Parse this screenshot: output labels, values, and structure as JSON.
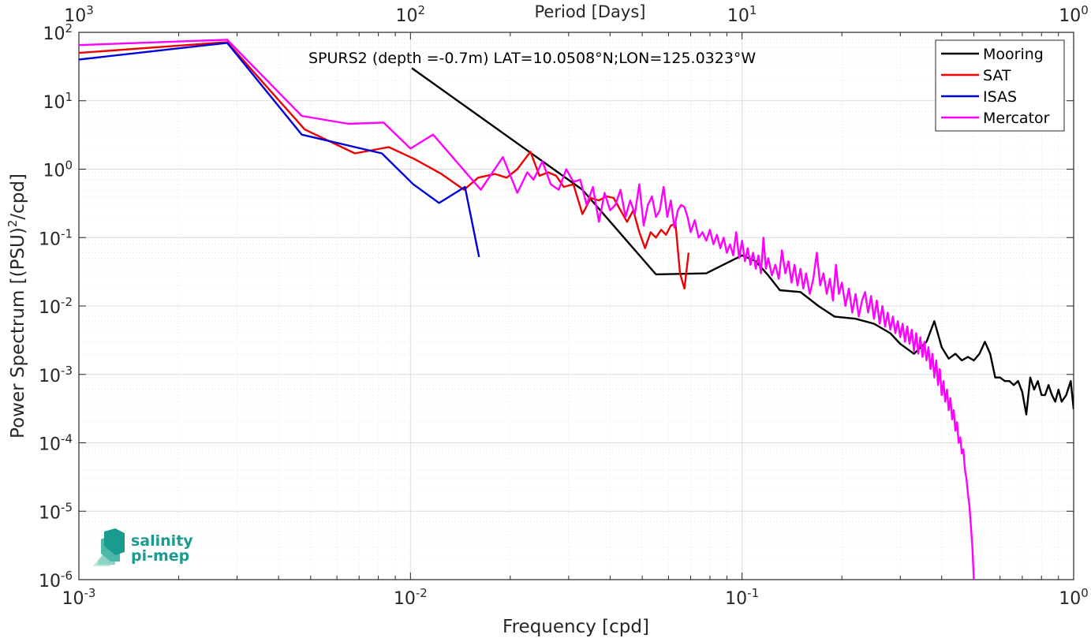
{
  "chart_data": {
    "type": "line",
    "title": "",
    "annotation": "SPURS2 (depth =-0.7m) LAT=10.0508°N;LON=125.0323°W",
    "xlabel": "Frequency [cpd]",
    "ylabel_parts": {
      "main": "Power Spectrum [(PSU)",
      "exp": "2",
      "tail": "/cpd]"
    },
    "top_axis_label": "Period [Days]",
    "x_scale": "log",
    "y_scale": "log",
    "xlim": [
      0.001,
      1
    ],
    "ylim": [
      1e-06,
      100
    ],
    "grid": true,
    "legend_position": "top-right",
    "x_ticks": [
      {
        "base": "10",
        "exp": "-3"
      },
      {
        "base": "10",
        "exp": "-2"
      },
      {
        "base": "10",
        "exp": "-1"
      },
      {
        "base": "10",
        "exp": "0"
      }
    ],
    "top_ticks": [
      {
        "base": "10",
        "exp": "3"
      },
      {
        "base": "10",
        "exp": "2"
      },
      {
        "base": "10",
        "exp": "1"
      },
      {
        "base": "10",
        "exp": "0"
      }
    ],
    "y_ticks": [
      {
        "base": "10",
        "exp": "2"
      },
      {
        "base": "10",
        "exp": "1"
      },
      {
        "base": "10",
        "exp": "0"
      },
      {
        "base": "10",
        "exp": "-1"
      },
      {
        "base": "10",
        "exp": "-2"
      },
      {
        "base": "10",
        "exp": "-3"
      },
      {
        "base": "10",
        "exp": "-4"
      },
      {
        "base": "10",
        "exp": "-5"
      },
      {
        "base": "10",
        "exp": "-6"
      }
    ],
    "series": [
      {
        "name": "Mooring",
        "color": "#000000",
        "points": [
          [
            0.0101,
            30
          ],
          [
            0.033,
            0.5
          ],
          [
            0.055,
            0.029
          ],
          [
            0.078,
            0.03
          ],
          [
            0.1,
            0.055
          ],
          [
            0.11,
            0.045
          ],
          [
            0.12,
            0.028
          ],
          [
            0.13,
            0.017
          ],
          [
            0.15,
            0.016
          ],
          [
            0.17,
            0.01
          ],
          [
            0.19,
            0.007
          ],
          [
            0.22,
            0.0065
          ],
          [
            0.25,
            0.0055
          ],
          [
            0.28,
            0.004
          ],
          [
            0.3,
            0.0028
          ],
          [
            0.33,
            0.002
          ],
          [
            0.36,
            0.003
          ],
          [
            0.38,
            0.006
          ],
          [
            0.4,
            0.0025
          ],
          [
            0.42,
            0.0017
          ],
          [
            0.44,
            0.002
          ],
          [
            0.46,
            0.0016
          ],
          [
            0.48,
            0.0018
          ],
          [
            0.5,
            0.0016
          ],
          [
            0.52,
            0.002
          ],
          [
            0.54,
            0.003
          ],
          [
            0.56,
            0.002
          ],
          [
            0.58,
            0.0009
          ],
          [
            0.6,
            0.0009
          ],
          [
            0.62,
            0.0008
          ],
          [
            0.64,
            0.0008
          ],
          [
            0.66,
            0.0007
          ],
          [
            0.68,
            0.0008
          ],
          [
            0.7,
            0.00055
          ],
          [
            0.72,
            0.00026
          ],
          [
            0.74,
            0.0009
          ],
          [
            0.76,
            0.0006
          ],
          [
            0.78,
            0.0008
          ],
          [
            0.8,
            0.0005
          ],
          [
            0.82,
            0.0005
          ],
          [
            0.84,
            0.0007
          ],
          [
            0.86,
            0.0005
          ],
          [
            0.88,
            0.0004
          ],
          [
            0.9,
            0.0006
          ],
          [
            0.92,
            0.0004
          ],
          [
            0.95,
            0.0005
          ],
          [
            0.98,
            0.0008
          ],
          [
            1.0,
            0.00031
          ]
        ]
      },
      {
        "name": "SAT",
        "color": "#ee0000",
        "points": [
          [
            0.001,
            50
          ],
          [
            0.0028,
            72
          ],
          [
            0.0048,
            3.8
          ],
          [
            0.0068,
            1.7
          ],
          [
            0.0086,
            2.1
          ],
          [
            0.0103,
            1.4
          ],
          [
            0.0124,
            0.85
          ],
          [
            0.0145,
            0.5
          ],
          [
            0.016,
            0.75
          ],
          [
            0.018,
            0.85
          ],
          [
            0.0195,
            0.75
          ],
          [
            0.021,
            1.0
          ],
          [
            0.023,
            1.8
          ],
          [
            0.0245,
            0.8
          ],
          [
            0.026,
            0.9
          ],
          [
            0.0275,
            0.8
          ],
          [
            0.029,
            0.55
          ],
          [
            0.031,
            0.6
          ],
          [
            0.033,
            0.22
          ],
          [
            0.035,
            0.38
          ],
          [
            0.037,
            0.35
          ],
          [
            0.039,
            0.4
          ],
          [
            0.041,
            0.38
          ],
          [
            0.043,
            0.25
          ],
          [
            0.045,
            0.17
          ],
          [
            0.047,
            0.25
          ],
          [
            0.049,
            0.12
          ],
          [
            0.051,
            0.07
          ],
          [
            0.053,
            0.12
          ],
          [
            0.055,
            0.1
          ],
          [
            0.057,
            0.13
          ],
          [
            0.059,
            0.11
          ],
          [
            0.061,
            0.15
          ],
          [
            0.063,
            0.16
          ],
          [
            0.065,
            0.03
          ],
          [
            0.067,
            0.018
          ],
          [
            0.069,
            0.06
          ]
        ]
      },
      {
        "name": "ISAS",
        "color": "#0000dd",
        "points": [
          [
            0.001,
            40
          ],
          [
            0.0028,
            70
          ],
          [
            0.0047,
            3.2
          ],
          [
            0.0082,
            1.7
          ],
          [
            0.0102,
            0.6
          ],
          [
            0.0122,
            0.32
          ],
          [
            0.0146,
            0.55
          ],
          [
            0.0161,
            0.052
          ]
        ]
      },
      {
        "name": "Mercator",
        "color": "#ff00ff",
        "points": [
          [
            0.001,
            65
          ],
          [
            0.0028,
            78
          ],
          [
            0.0047,
            6.0
          ],
          [
            0.0065,
            4.6
          ],
          [
            0.0083,
            4.8
          ],
          [
            0.01,
            2.0
          ],
          [
            0.0117,
            3.2
          ],
          [
            0.0163,
            0.5
          ],
          [
            0.019,
            1.5
          ],
          [
            0.021,
            0.45
          ],
          [
            0.0225,
            0.9
          ],
          [
            0.0235,
            0.7
          ],
          [
            0.025,
            1.3
          ],
          [
            0.0265,
            0.6
          ],
          [
            0.028,
            0.5
          ],
          [
            0.0295,
            1.0
          ],
          [
            0.031,
            0.65
          ],
          [
            0.0325,
            0.7
          ],
          [
            0.034,
            0.3
          ],
          [
            0.0355,
            0.55
          ],
          [
            0.037,
            0.17
          ],
          [
            0.0385,
            0.45
          ],
          [
            0.04,
            0.25
          ],
          [
            0.0415,
            0.3
          ],
          [
            0.043,
            0.5
          ],
          [
            0.0445,
            0.2
          ],
          [
            0.046,
            0.35
          ],
          [
            0.0475,
            0.22
          ],
          [
            0.049,
            0.6
          ],
          [
            0.0505,
            0.15
          ],
          [
            0.052,
            0.3
          ],
          [
            0.0535,
            0.4
          ],
          [
            0.055,
            0.2
          ],
          [
            0.0565,
            0.25
          ],
          [
            0.058,
            0.55
          ],
          [
            0.0595,
            0.2
          ],
          [
            0.061,
            0.35
          ],
          [
            0.0625,
            0.14
          ],
          [
            0.064,
            0.25
          ],
          [
            0.0655,
            0.3
          ],
          [
            0.067,
            0.28
          ],
          [
            0.0685,
            0.2
          ],
          [
            0.07,
            0.12
          ],
          [
            0.072,
            0.18
          ],
          [
            0.074,
            0.1
          ],
          [
            0.076,
            0.12
          ],
          [
            0.078,
            0.09
          ],
          [
            0.08,
            0.13
          ],
          [
            0.082,
            0.08
          ],
          [
            0.084,
            0.11
          ],
          [
            0.086,
            0.07
          ],
          [
            0.088,
            0.1
          ],
          [
            0.09,
            0.06
          ],
          [
            0.092,
            0.08
          ],
          [
            0.094,
            0.055
          ],
          [
            0.096,
            0.12
          ],
          [
            0.098,
            0.05
          ],
          [
            0.1,
            0.09
          ],
          [
            0.102,
            0.045
          ],
          [
            0.104,
            0.07
          ],
          [
            0.106,
            0.04
          ],
          [
            0.108,
            0.06
          ],
          [
            0.11,
            0.035
          ],
          [
            0.112,
            0.055
          ],
          [
            0.114,
            0.03
          ],
          [
            0.116,
            0.1
          ],
          [
            0.118,
            0.035
          ],
          [
            0.12,
            0.05
          ],
          [
            0.123,
            0.028
          ],
          [
            0.126,
            0.04
          ],
          [
            0.129,
            0.025
          ],
          [
            0.132,
            0.065
          ],
          [
            0.135,
            0.03
          ],
          [
            0.138,
            0.045
          ],
          [
            0.141,
            0.022
          ],
          [
            0.144,
            0.04
          ],
          [
            0.147,
            0.02
          ],
          [
            0.15,
            0.035
          ],
          [
            0.153,
            0.018
          ],
          [
            0.156,
            0.03
          ],
          [
            0.16,
            0.015
          ],
          [
            0.164,
            0.025
          ],
          [
            0.168,
            0.06
          ],
          [
            0.172,
            0.02
          ],
          [
            0.176,
            0.03
          ],
          [
            0.18,
            0.015
          ],
          [
            0.184,
            0.025
          ],
          [
            0.188,
            0.012
          ],
          [
            0.192,
            0.04
          ],
          [
            0.196,
            0.015
          ],
          [
            0.2,
            0.022
          ],
          [
            0.205,
            0.01
          ],
          [
            0.21,
            0.018
          ],
          [
            0.215,
            0.008
          ],
          [
            0.22,
            0.015
          ],
          [
            0.225,
            0.007
          ],
          [
            0.23,
            0.012
          ],
          [
            0.235,
            0.016
          ],
          [
            0.24,
            0.008
          ],
          [
            0.245,
            0.014
          ],
          [
            0.25,
            0.0065
          ],
          [
            0.255,
            0.012
          ],
          [
            0.26,
            0.0055
          ],
          [
            0.265,
            0.01
          ],
          [
            0.27,
            0.005
          ],
          [
            0.275,
            0.008
          ],
          [
            0.28,
            0.0045
          ],
          [
            0.285,
            0.007
          ],
          [
            0.29,
            0.004
          ],
          [
            0.295,
            0.006
          ],
          [
            0.3,
            0.0035
          ],
          [
            0.305,
            0.0055
          ],
          [
            0.31,
            0.003
          ],
          [
            0.315,
            0.005
          ],
          [
            0.32,
            0.0028
          ],
          [
            0.325,
            0.0045
          ],
          [
            0.33,
            0.0022
          ],
          [
            0.335,
            0.004
          ],
          [
            0.34,
            0.002
          ],
          [
            0.345,
            0.0035
          ],
          [
            0.35,
            0.0018
          ],
          [
            0.355,
            0.003
          ],
          [
            0.36,
            0.0016
          ],
          [
            0.365,
            0.0025
          ],
          [
            0.37,
            0.0012
          ],
          [
            0.375,
            0.002
          ],
          [
            0.38,
            0.0009
          ],
          [
            0.385,
            0.0016
          ],
          [
            0.39,
            0.0007
          ],
          [
            0.395,
            0.0012
          ],
          [
            0.4,
            0.0005
          ],
          [
            0.405,
            0.0008
          ],
          [
            0.41,
            0.0004
          ],
          [
            0.415,
            0.0006
          ],
          [
            0.42,
            0.0003
          ],
          [
            0.425,
            0.00045
          ],
          [
            0.43,
            0.00022
          ],
          [
            0.435,
            0.0003
          ],
          [
            0.44,
            0.00015
          ],
          [
            0.445,
            0.0002
          ],
          [
            0.45,
            0.0001
          ],
          [
            0.455,
            0.00012
          ],
          [
            0.46,
            7e-05
          ],
          [
            0.465,
            8e-05
          ],
          [
            0.47,
            4e-05
          ],
          [
            0.475,
            3e-05
          ],
          [
            0.48,
            1.8e-05
          ],
          [
            0.485,
            1.2e-05
          ],
          [
            0.49,
            6e-06
          ],
          [
            0.495,
            3e-06
          ],
          [
            0.5,
            1e-06
          ]
        ]
      }
    ]
  },
  "logo": {
    "line1": "salinity",
    "line2": "pi-mep",
    "color": "#1a9b8f"
  }
}
